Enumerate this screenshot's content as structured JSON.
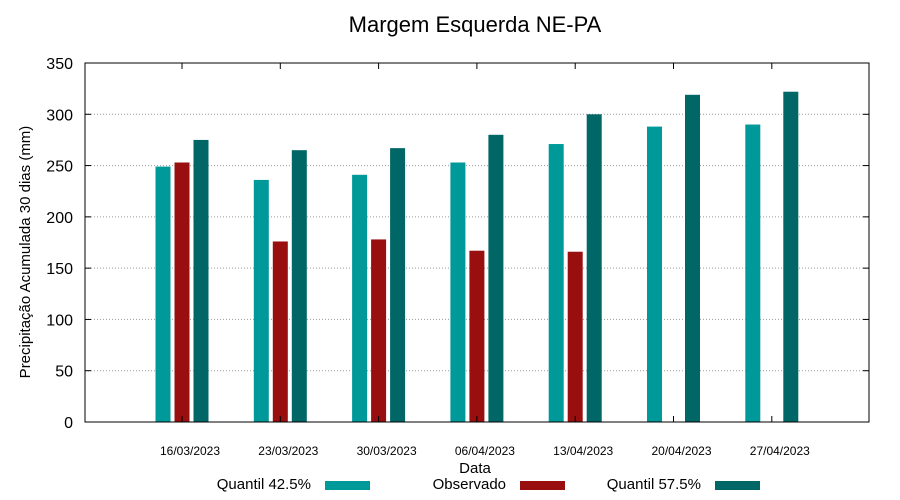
{
  "chart_data": {
    "type": "bar",
    "title": "Margem Esquerda NE-PA",
    "xlabel": "Data",
    "ylabel": "Precipitação Acumulada 30 dias (mm)",
    "ylim": [
      0,
      350
    ],
    "yticks": [
      0,
      50,
      100,
      150,
      200,
      250,
      300,
      350
    ],
    "grid": true,
    "legend_position": "bottom",
    "categories": [
      "16/03/2023",
      "23/03/2023",
      "30/03/2023",
      "06/04/2023",
      "13/04/2023",
      "20/04/2023",
      "27/04/2023"
    ],
    "series": [
      {
        "name": "Quantil 42.5%",
        "color": "#009999",
        "values": [
          249,
          236,
          241,
          253,
          271,
          288,
          290
        ]
      },
      {
        "name": "Observado",
        "color": "#990f0f",
        "values": [
          253,
          176,
          178,
          167,
          166,
          null,
          null
        ]
      },
      {
        "name": "Quantil 57.5%",
        "color": "#006666",
        "values": [
          275,
          265,
          267,
          280,
          300,
          319,
          322
        ]
      }
    ]
  }
}
